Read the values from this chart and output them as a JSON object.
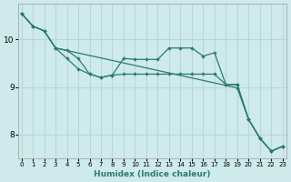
{
  "xlabel": "Humidex (Indice chaleur)",
  "bg_color": "#ceeaea",
  "grid_color": "#b8d8d8",
  "line_color": "#2d7b6e",
  "x_min": 0,
  "x_max": 23,
  "y_min": 7.5,
  "y_max": 10.75,
  "y_ticks": [
    8,
    9,
    10
  ],
  "series1_x": [
    0,
    1,
    2,
    3,
    4,
    5,
    6,
    7,
    8,
    9,
    10,
    11,
    12,
    13,
    14,
    15,
    16,
    17,
    18,
    19,
    20,
    21,
    22,
    23
  ],
  "series1_y": [
    10.55,
    10.28,
    10.18,
    9.82,
    9.77,
    9.6,
    9.27,
    9.2,
    9.25,
    9.6,
    9.58,
    9.58,
    9.58,
    9.82,
    9.82,
    9.82,
    9.65,
    9.72,
    9.05,
    9.05,
    8.32,
    7.92,
    7.65,
    7.75
  ],
  "series2_x": [
    0,
    1,
    2,
    3,
    4,
    5,
    6,
    7,
    8,
    9,
    10,
    11,
    12,
    13,
    14,
    15,
    16,
    17,
    18,
    19,
    20,
    21,
    22,
    23
  ],
  "series2_y": [
    10.55,
    10.28,
    10.18,
    9.82,
    9.6,
    9.38,
    9.27,
    9.2,
    9.25,
    9.27,
    9.27,
    9.27,
    9.27,
    9.27,
    9.27,
    9.27,
    9.27,
    9.27,
    9.05,
    9.05,
    8.32,
    7.92,
    7.65,
    7.75
  ],
  "series3_x": [
    0,
    1,
    2,
    3,
    19,
    20,
    21,
    22,
    23
  ],
  "series3_y": [
    10.55,
    10.28,
    10.18,
    9.82,
    8.98,
    8.32,
    7.92,
    7.65,
    7.75
  ]
}
